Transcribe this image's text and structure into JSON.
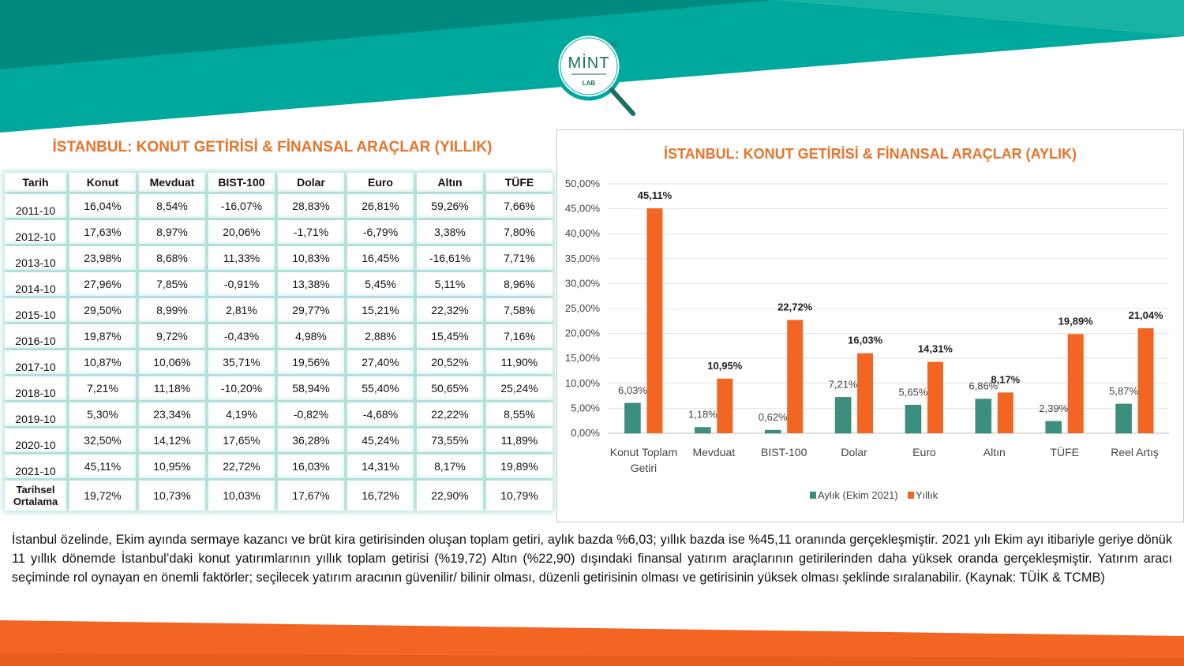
{
  "colors": {
    "teal": "#00a99d",
    "teal_dark": "#008b80",
    "orange": "#f26522",
    "title_orange": "#e8742b",
    "monthly_bar": "#3a8f7f",
    "yearly_bar": "#f26522"
  },
  "logo": {
    "text_main": "MİNT",
    "text_sub": "LAB"
  },
  "left_table": {
    "title": "İSTANBUL: KONUT GETİRİSİ & FİNANSAL ARAÇLAR (YILLIK)",
    "headers": [
      "Tarih",
      "Konut",
      "Mevduat",
      "BIST-100",
      "Dolar",
      "Euro",
      "Altın",
      "TÜFE"
    ],
    "rows": [
      [
        "2011-10",
        "16,04%",
        "8,54%",
        "-16,07%",
        "28,83%",
        "26,81%",
        "59,26%",
        "7,66%"
      ],
      [
        "2012-10",
        "17,63%",
        "8,97%",
        "20,06%",
        "-1,71%",
        "-6,79%",
        "3,38%",
        "7,80%"
      ],
      [
        "2013-10",
        "23,98%",
        "8,68%",
        "11,33%",
        "10,83%",
        "16,45%",
        "-16,61%",
        "7,71%"
      ],
      [
        "2014-10",
        "27,96%",
        "7,85%",
        "-0,91%",
        "13,38%",
        "5,45%",
        "5,11%",
        "8,96%"
      ],
      [
        "2015-10",
        "29,50%",
        "8,99%",
        "2,81%",
        "29,77%",
        "15,21%",
        "22,32%",
        "7,58%"
      ],
      [
        "2016-10",
        "19,87%",
        "9,72%",
        "-0,43%",
        "4,98%",
        "2,88%",
        "15,45%",
        "7,16%"
      ],
      [
        "2017-10",
        "10,87%",
        "10,06%",
        "35,71%",
        "19,56%",
        "27,40%",
        "20,52%",
        "11,90%"
      ],
      [
        "2018-10",
        "7,21%",
        "11,18%",
        "-10,20%",
        "58,94%",
        "55,40%",
        "50,65%",
        "25,24%"
      ],
      [
        "2019-10",
        "5,30%",
        "23,34%",
        "4,19%",
        "-0,82%",
        "-4,68%",
        "22,22%",
        "8,55%"
      ],
      [
        "2020-10",
        "32,50%",
        "14,12%",
        "17,65%",
        "36,28%",
        "45,24%",
        "73,55%",
        "11,89%"
      ],
      [
        "2021-10",
        "45,11%",
        "10,95%",
        "22,72%",
        "16,03%",
        "14,31%",
        "8,17%",
        "19,89%"
      ]
    ],
    "average": {
      "label_line1": "Tarihsel",
      "label_line2": "Ortalama",
      "values": [
        "19,72%",
        "10,73%",
        "10,03%",
        "17,67%",
        "16,72%",
        "22,90%",
        "10,79%"
      ]
    }
  },
  "chart_data": {
    "type": "bar",
    "title": "İSTANBUL: KONUT GETİRİSİ & FİNANSAL ARAÇLAR (AYLIK)",
    "categories": [
      [
        "Konut Toplam",
        "Getiri"
      ],
      [
        "Mevduat"
      ],
      [
        "BIST-100"
      ],
      [
        "Dolar"
      ],
      [
        "Euro"
      ],
      [
        "Altın"
      ],
      [
        "TÜFE"
      ],
      [
        "Reel Artış"
      ]
    ],
    "series": [
      {
        "name": "Aylık (Ekim 2021)",
        "values": [
          6.03,
          1.18,
          0.62,
          7.21,
          5.65,
          6.86,
          2.39,
          5.87
        ],
        "labels": [
          "6,03%",
          "1,18%",
          "0,62%",
          "7,21%",
          "5,65%",
          "6,86%",
          "2,39%",
          "5,87%"
        ]
      },
      {
        "name": "Yıllık",
        "values": [
          45.11,
          10.95,
          22.72,
          16.03,
          14.31,
          8.17,
          19.89,
          21.04
        ],
        "labels": [
          "45,11%",
          "10,95%",
          "22,72%",
          "16,03%",
          "14,31%",
          "8,17%",
          "19,89%",
          "21,04%"
        ]
      }
    ],
    "ylim": [
      0,
      50
    ],
    "yticks": [
      "0,00%",
      "5,00%",
      "10,00%",
      "15,00%",
      "20,00%",
      "25,00%",
      "30,00%",
      "35,00%",
      "40,00%",
      "45,00%",
      "50,00%"
    ],
    "grid": true,
    "legend": "bottom"
  },
  "paragraph": "İstanbul özelinde, Ekim ayında sermaye kazancı ve brüt kira getirisinden oluşan toplam getiri, aylık bazda %6,03; yıllık bazda ise %45,11 oranında gerçekleşmiştir. 2021 yılı Ekim ayı itibariyle geriye dönük 11 yıllık dönemde İstanbul’daki konut yatırımlarının yıllık toplam getirisi (%19,72) Altın (%22,90) dışındaki finansal yatırım araçlarının getirilerinden daha yüksek oranda gerçekleşmiştir. Yatırım aracı seçiminde rol oynayan en önemli faktörler; seçilecek yatırım aracının güvenilir/ bilinir olması, düzenli getirisinin olması ve getirisinin yüksek olması şeklinde sıralanabilir. (Kaynak: TÜİK & TCMB)"
}
